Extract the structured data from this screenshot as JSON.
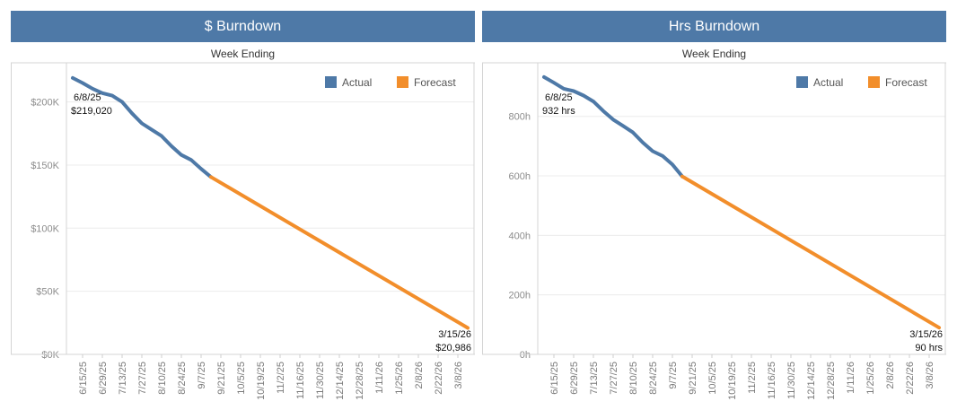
{
  "colors": {
    "header_bg": "#4e79a7",
    "actual": "#4e79a7",
    "forecast": "#f28e2b",
    "header_text": "#ffffff"
  },
  "x_tick_labels": [
    "6/15/25",
    "6/29/25",
    "7/13/25",
    "7/27/25",
    "8/10/25",
    "8/24/25",
    "9/7/25",
    "9/21/25",
    "10/5/25",
    "10/19/25",
    "11/2/25",
    "11/16/25",
    "11/30/25",
    "12/14/25",
    "12/28/25",
    "1/11/26",
    "1/25/26",
    "2/8/26",
    "2/22/26",
    "3/8/26"
  ],
  "legend": {
    "actual": "Actual",
    "forecast": "Forecast",
    "placement": "top-right"
  },
  "chart_data": [
    {
      "type": "line",
      "title": "$ Burndown",
      "xlabel": "Week Ending",
      "ylabel": "",
      "ylim": [
        0,
        231000
      ],
      "y_ticks": [
        0,
        50000,
        100000,
        150000,
        200000
      ],
      "y_tick_labels": [
        "$0K",
        "$50K",
        "$100K",
        "$150K",
        "$200K"
      ],
      "xlim": [
        "6/8/25",
        "3/15/26"
      ],
      "series": [
        {
          "name": "Actual",
          "x": [
            "6/8/25",
            "6/15/25",
            "6/22/25",
            "6/29/25",
            "7/6/25",
            "7/13/25",
            "7/20/25",
            "7/27/25",
            "8/3/25",
            "8/10/25",
            "8/17/25",
            "8/24/25",
            "8/31/25",
            "9/7/25",
            "9/14/25"
          ],
          "values": [
            219020,
            215000,
            210500,
            207000,
            205000,
            200000,
            191000,
            183000,
            178000,
            173000,
            165000,
            158000,
            154000,
            147000,
            140500
          ]
        },
        {
          "name": "Forecast",
          "x": [
            "9/14/25",
            "3/15/26"
          ],
          "values": [
            140500,
            20986
          ]
        }
      ],
      "annotations": [
        {
          "date": "6/8/25",
          "value": "$219,020"
        },
        {
          "date": "3/15/26",
          "value": "$20,986"
        }
      ],
      "grid": true
    },
    {
      "type": "line",
      "title": "Hrs Burndown",
      "xlabel": "Week Ending",
      "ylabel": "",
      "ylim": [
        0,
        980
      ],
      "y_ticks": [
        0,
        200,
        400,
        600,
        800
      ],
      "y_tick_labels": [
        "0h",
        "200h",
        "400h",
        "600h",
        "800h"
      ],
      "xlim": [
        "6/8/25",
        "3/15/26"
      ],
      "series": [
        {
          "name": "Actual",
          "x": [
            "6/8/25",
            "6/15/25",
            "6/22/25",
            "6/29/25",
            "7/6/25",
            "7/13/25",
            "7/20/25",
            "7/27/25",
            "8/3/25",
            "8/10/25",
            "8/17/25",
            "8/24/25",
            "8/31/25",
            "9/7/25",
            "9/14/25"
          ],
          "values": [
            932,
            913,
            893,
            885,
            870,
            850,
            818,
            789,
            768,
            746,
            712,
            683,
            667,
            638,
            598
          ]
        },
        {
          "name": "Forecast",
          "x": [
            "9/14/25",
            "3/15/26"
          ],
          "values": [
            598,
            90
          ]
        }
      ],
      "annotations": [
        {
          "date": "6/8/25",
          "value": "932 hrs"
        },
        {
          "date": "3/15/26",
          "value": "90 hrs"
        }
      ],
      "grid": true
    }
  ]
}
